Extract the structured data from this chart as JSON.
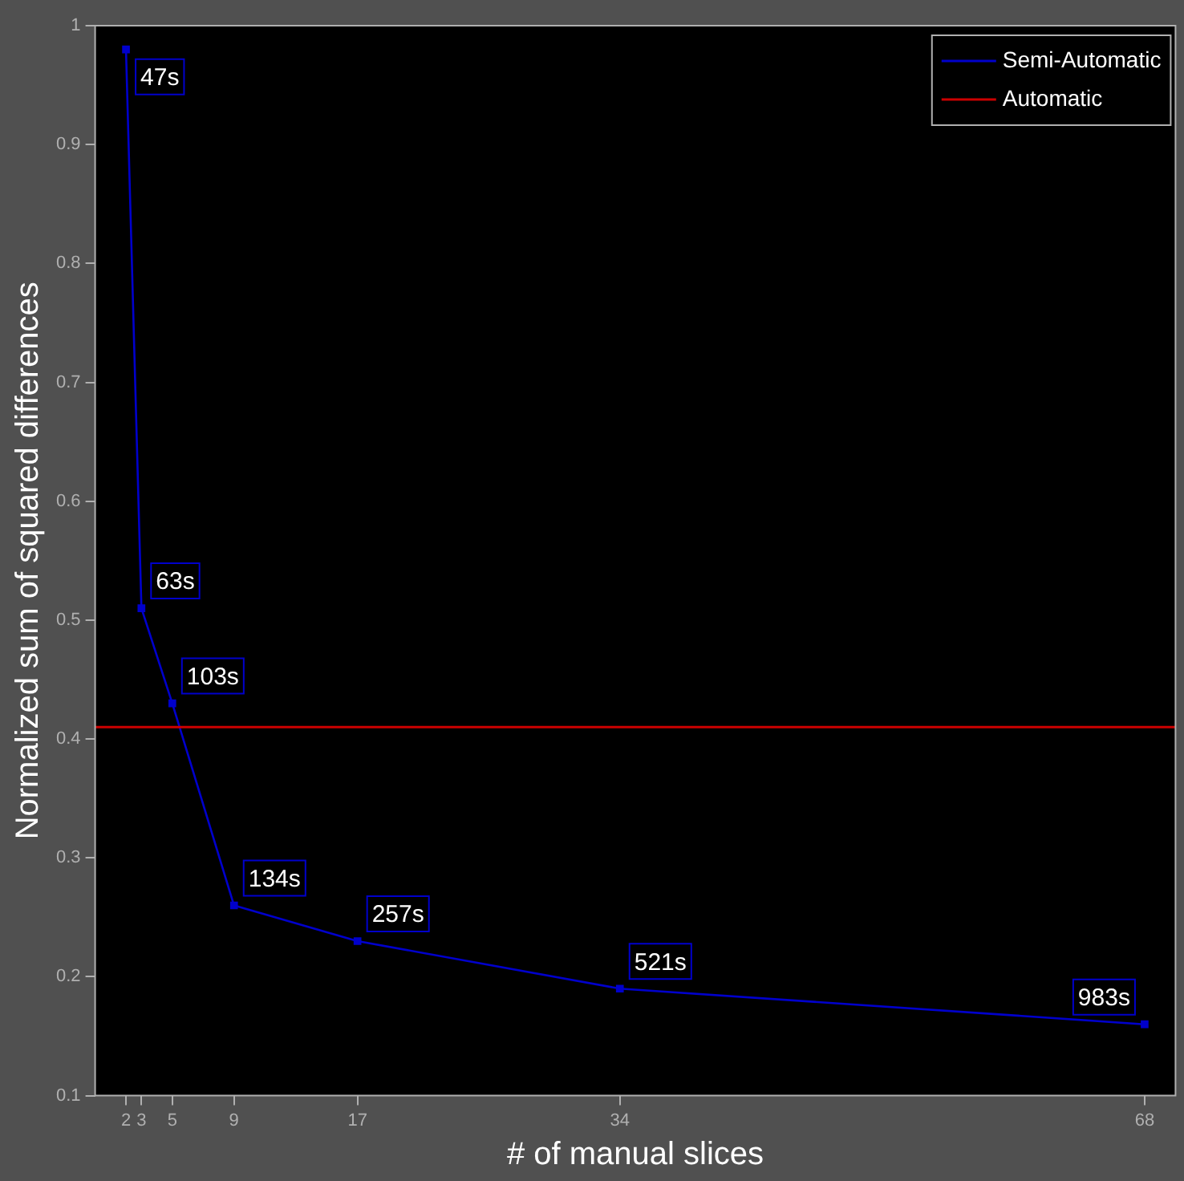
{
  "chart_data": {
    "type": "line",
    "xlabel": "# of manual slices",
    "ylabel": "Normalized sum of squared differences",
    "xlim": [
      0,
      70
    ],
    "xticks": [
      2,
      3,
      5,
      9,
      17,
      34,
      68
    ],
    "ylim": [
      0.1,
      1
    ],
    "yticks": [
      0.1,
      0.2,
      0.3,
      0.4,
      0.5,
      0.6,
      0.7,
      0.8,
      0.9,
      1
    ],
    "x": [
      2,
      3,
      5,
      9,
      17,
      34,
      68
    ],
    "series": [
      {
        "name": "Semi-Automatic",
        "color": "#0000cc",
        "values": [
          0.98,
          0.51,
          0.43,
          0.26,
          0.23,
          0.19,
          0.16
        ]
      }
    ],
    "annotations": [
      {
        "text": "47s",
        "x": 2,
        "y": 0.98
      },
      {
        "text": "63s",
        "x": 3,
        "y": 0.51
      },
      {
        "text": "103s",
        "x": 5,
        "y": 0.43
      },
      {
        "text": "134s",
        "x": 9,
        "y": 0.26
      },
      {
        "text": "257s",
        "x": 17,
        "y": 0.23
      },
      {
        "text": "521s",
        "x": 34,
        "y": 0.19
      },
      {
        "text": "983s",
        "x": 68,
        "y": 0.16
      }
    ],
    "ref_lines": [
      {
        "axis": "y",
        "value": 0.41,
        "label": "Automatic",
        "color": "#cc0000"
      }
    ],
    "legend": "top right",
    "grid": false,
    "marker": "square",
    "line_style": "solid"
  }
}
